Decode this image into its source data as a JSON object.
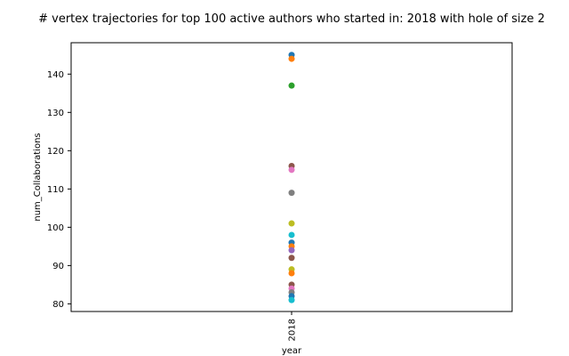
{
  "chart_data": {
    "type": "scatter",
    "title": "# vertex trajectories for top 100 active authors who started in: 2018 with hole of size 2",
    "xlabel": "year",
    "ylabel": "num_Collaborations",
    "x_categories": [
      "2018"
    ],
    "yticks": [
      80,
      90,
      100,
      110,
      120,
      130,
      140
    ],
    "ylim": [
      78,
      148.2
    ],
    "grid": false,
    "points": [
      {
        "x": "2018",
        "y": 145,
        "color": "#1f77b4"
      },
      {
        "x": "2018",
        "y": 144,
        "color": "#ff7f0e"
      },
      {
        "x": "2018",
        "y": 137,
        "color": "#2ca02c"
      },
      {
        "x": "2018",
        "y": 116,
        "color": "#8c564b"
      },
      {
        "x": "2018",
        "y": 115,
        "color": "#e377c2"
      },
      {
        "x": "2018",
        "y": 109,
        "color": "#7f7f7f"
      },
      {
        "x": "2018",
        "y": 101,
        "color": "#bcbd22"
      },
      {
        "x": "2018",
        "y": 98,
        "color": "#17becf"
      },
      {
        "x": "2018",
        "y": 96,
        "color": "#1f77b4"
      },
      {
        "x": "2018",
        "y": 95,
        "color": "#ff7f0e"
      },
      {
        "x": "2018",
        "y": 94,
        "color": "#9467bd"
      },
      {
        "x": "2018",
        "y": 92,
        "color": "#8c564b"
      },
      {
        "x": "2018",
        "y": 89,
        "color": "#bcbd22"
      },
      {
        "x": "2018",
        "y": 88,
        "color": "#ff7f0e"
      },
      {
        "x": "2018",
        "y": 85,
        "color": "#8c564b"
      },
      {
        "x": "2018",
        "y": 84,
        "color": "#e377c2"
      },
      {
        "x": "2018",
        "y": 83,
        "color": "#7f7f7f"
      },
      {
        "x": "2018",
        "y": 82,
        "color": "#1f77b4"
      },
      {
        "x": "2018",
        "y": 81,
        "color": "#17becf"
      }
    ]
  }
}
